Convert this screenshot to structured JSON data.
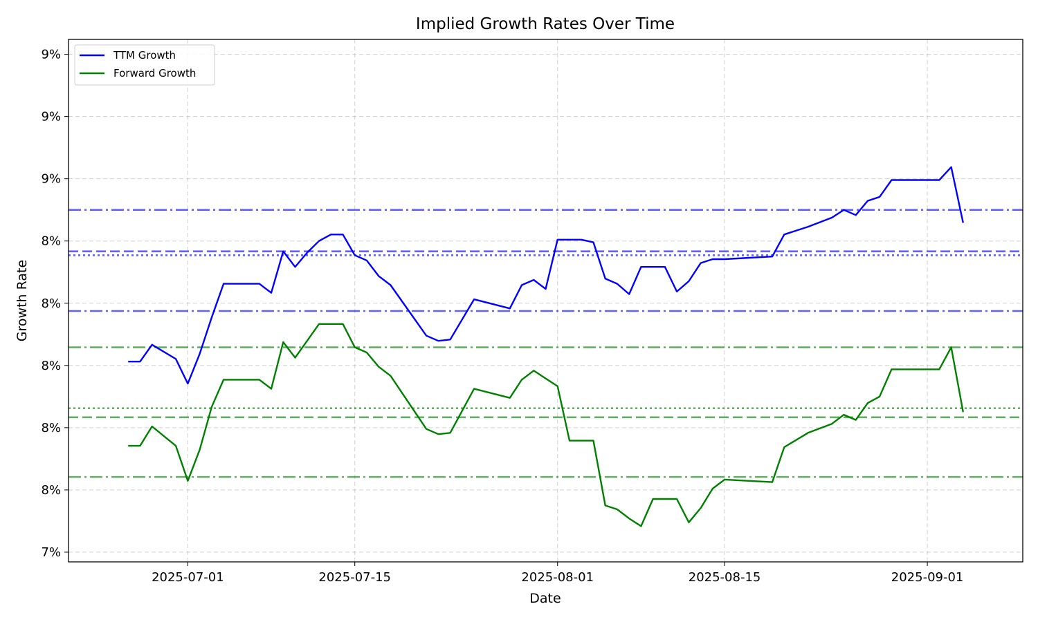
{
  "chart_data": {
    "type": "line",
    "title": "Implied Growth Rates Over Time",
    "xlabel": "Date",
    "ylabel": "Growth Rate",
    "x_ticks": [
      "2025-07-01",
      "2025-07-15",
      "2025-08-01",
      "2025-08-15",
      "2025-09-01"
    ],
    "y_ticks": [
      "7%",
      "8%",
      "8%",
      "8%",
      "8%",
      "8%",
      "9%",
      "9%",
      "9%"
    ],
    "y_tick_values": [
      0.07,
      0.0748,
      0.0796,
      0.0844,
      0.0892,
      0.094,
      0.0988,
      0.1036,
      0.1084
    ],
    "xlim": [
      "2025-06-21",
      "2025-09-09"
    ],
    "ylim": [
      0.06925,
      0.10955
    ],
    "grid": true,
    "legend": {
      "position": "top-left",
      "entries": [
        {
          "label": "TTM Growth",
          "color": "#0000ff"
        },
        {
          "label": "Forward Growth",
          "color": "#008000"
        }
      ]
    },
    "x": [
      "2025-06-26",
      "2025-06-27",
      "2025-06-28",
      "2025-06-30",
      "2025-07-01",
      "2025-07-02",
      "2025-07-03",
      "2025-07-04",
      "2025-07-07",
      "2025-07-08",
      "2025-07-09",
      "2025-07-10",
      "2025-07-11",
      "2025-07-12",
      "2025-07-13",
      "2025-07-14",
      "2025-07-15",
      "2025-07-16",
      "2025-07-17",
      "2025-07-18",
      "2025-07-21",
      "2025-07-22",
      "2025-07-23",
      "2025-07-25",
      "2025-07-28",
      "2025-07-29",
      "2025-07-30",
      "2025-07-31",
      "2025-08-01",
      "2025-08-02",
      "2025-08-03",
      "2025-08-04",
      "2025-08-05",
      "2025-08-06",
      "2025-08-07",
      "2025-08-08",
      "2025-08-09",
      "2025-08-10",
      "2025-08-11",
      "2025-08-12",
      "2025-08-13",
      "2025-08-14",
      "2025-08-15",
      "2025-08-19",
      "2025-08-20",
      "2025-08-22",
      "2025-08-24",
      "2025-08-25",
      "2025-08-26",
      "2025-08-27",
      "2025-08-28",
      "2025-08-29",
      "2025-09-01",
      "2025-09-02",
      "2025-09-03",
      "2025-09-04"
    ],
    "series": [
      {
        "name": "TTM Growth",
        "color": "#0000ff",
        "values": [
          0.0847,
          0.0847,
          0.086,
          0.0849,
          0.083,
          0.0853,
          0.0881,
          0.0907,
          0.0907,
          0.09,
          0.0932,
          0.092,
          0.0931,
          0.094,
          0.0945,
          0.0945,
          0.0929,
          0.0925,
          0.0913,
          0.0906,
          0.0867,
          0.0863,
          0.0864,
          0.0895,
          0.0888,
          0.0906,
          0.091,
          0.0903,
          0.0941,
          0.0941,
          0.0941,
          0.0939,
          0.0911,
          0.0907,
          0.0899,
          0.092,
          0.092,
          0.092,
          0.0901,
          0.0909,
          0.0923,
          0.0926,
          0.0926,
          0.0928,
          0.0945,
          0.0951,
          0.0958,
          0.0964,
          0.096,
          0.0971,
          0.0974,
          0.0987,
          0.0987,
          0.0987,
          0.0997,
          0.0954
        ]
      },
      {
        "name": "Forward Growth",
        "color": "#008000",
        "values": [
          0.0782,
          0.0782,
          0.0797,
          0.0782,
          0.0755,
          0.0779,
          0.0812,
          0.0833,
          0.0833,
          0.0826,
          0.0862,
          0.085,
          0.0863,
          0.0876,
          0.0876,
          0.0876,
          0.0858,
          0.0854,
          0.0843,
          0.0836,
          0.0795,
          0.0791,
          0.0792,
          0.0826,
          0.0819,
          0.0833,
          0.084,
          0.0834,
          0.0828,
          0.0786,
          0.0786,
          0.0786,
          0.0736,
          0.0733,
          0.0726,
          0.072,
          0.0741,
          0.0741,
          0.0741,
          0.0723,
          0.0734,
          0.0749,
          0.0756,
          0.0754,
          0.0781,
          0.0792,
          0.0799,
          0.0806,
          0.0802,
          0.0815,
          0.082,
          0.0841,
          0.0841,
          0.0841,
          0.0858,
          0.0808
        ]
      }
    ],
    "reference_lines": [
      {
        "color": "#0000ff",
        "style": "dashdot",
        "value": 0.0964
      },
      {
        "color": "#0000ff",
        "style": "dashed",
        "value": 0.0932
      },
      {
        "color": "#0000ff",
        "style": "dotted",
        "value": 0.0929
      },
      {
        "color": "#0000ff",
        "style": "dashdot",
        "value": 0.0886
      },
      {
        "color": "#008000",
        "style": "dashdot",
        "value": 0.0858
      },
      {
        "color": "#008000",
        "style": "dotted",
        "value": 0.0811
      },
      {
        "color": "#008000",
        "style": "dashed",
        "value": 0.0804
      },
      {
        "color": "#008000",
        "style": "dashdot",
        "value": 0.0758
      }
    ]
  }
}
